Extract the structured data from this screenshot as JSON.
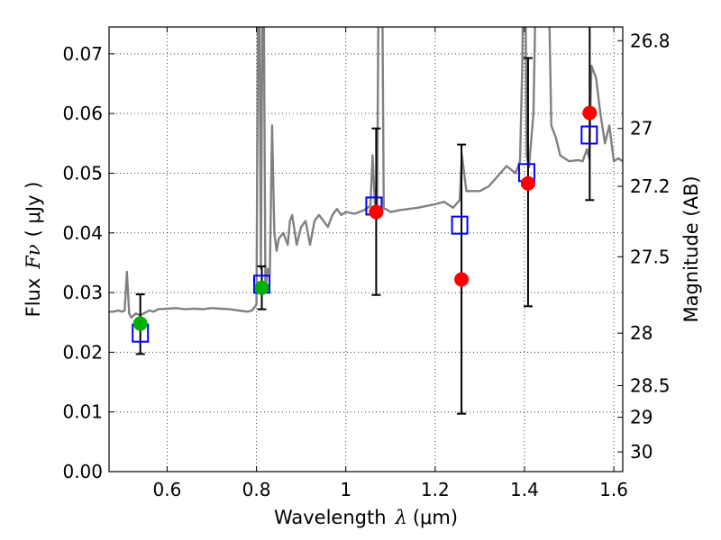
{
  "chart_data": {
    "type": "scatter",
    "xlabel_prefix": "Wavelength",
    "xlabel_symbol": "λ",
    "xlabel_unit": "(μm)",
    "ylabel_prefix": "Flux",
    "ylabel_symbol": "Fν",
    "ylabel_unit": "( μJy )",
    "y2label": "Magnitude (AB)",
    "xlim": [
      0.47,
      1.62
    ],
    "ylim": [
      0.0,
      0.0745
    ],
    "xticks": [
      {
        "value": 0.6,
        "label": "0.6"
      },
      {
        "value": 0.8,
        "label": "0.8"
      },
      {
        "value": 1.0,
        "label": "1"
      },
      {
        "value": 1.2,
        "label": "1.2"
      },
      {
        "value": 1.4,
        "label": "1.4"
      },
      {
        "value": 1.6,
        "label": "1.6"
      }
    ],
    "yticks": [
      {
        "value": 0.0,
        "label": "0.00"
      },
      {
        "value": 0.01,
        "label": "0.01"
      },
      {
        "value": 0.02,
        "label": "0.02"
      },
      {
        "value": 0.03,
        "label": "0.03"
      },
      {
        "value": 0.04,
        "label": "0.04"
      },
      {
        "value": 0.05,
        "label": "0.05"
      },
      {
        "value": 0.06,
        "label": "0.06"
      },
      {
        "value": 0.07,
        "label": "0.07"
      }
    ],
    "y2ticks": [
      {
        "flux": 0.0722,
        "label": "26.8"
      },
      {
        "flux": 0.0575,
        "label": "27"
      },
      {
        "flux": 0.0478,
        "label": "27.2"
      },
      {
        "flux": 0.036,
        "label": "27.5"
      },
      {
        "flux": 0.0232,
        "label": "28"
      },
      {
        "flux": 0.0144,
        "label": "28.5"
      },
      {
        "flux": 0.0091,
        "label": "29"
      },
      {
        "flux": 0.0033,
        "label": "30"
      }
    ],
    "grid": true,
    "series": [
      {
        "name": "model spectrum",
        "kind": "line",
        "color": "#808080",
        "x": [
          0.47,
          0.48,
          0.49,
          0.5,
          0.505,
          0.51,
          0.515,
          0.52,
          0.53,
          0.54,
          0.55,
          0.56,
          0.57,
          0.58,
          0.6,
          0.62,
          0.64,
          0.66,
          0.68,
          0.7,
          0.72,
          0.74,
          0.76,
          0.78,
          0.79,
          0.8,
          0.805,
          0.81,
          0.815,
          0.82,
          0.825,
          0.83,
          0.835,
          0.84,
          0.845,
          0.85,
          0.86,
          0.87,
          0.875,
          0.88,
          0.89,
          0.9,
          0.91,
          0.92,
          0.93,
          0.94,
          0.95,
          0.96,
          0.97,
          0.98,
          0.99,
          1.0,
          1.02,
          1.04,
          1.055,
          1.06,
          1.065,
          1.07,
          1.075,
          1.08,
          1.085,
          1.09,
          1.1,
          1.12,
          1.14,
          1.16,
          1.18,
          1.2,
          1.22,
          1.24,
          1.255,
          1.26,
          1.27,
          1.28,
          1.3,
          1.32,
          1.34,
          1.36,
          1.38,
          1.39,
          1.395,
          1.4,
          1.405,
          1.41,
          1.42,
          1.43,
          1.44,
          1.45,
          1.46,
          1.47,
          1.48,
          1.5,
          1.52,
          1.53,
          1.54,
          1.545,
          1.55,
          1.56,
          1.57,
          1.58,
          1.59,
          1.6,
          1.61,
          1.62
        ],
        "y": [
          0.0268,
          0.0268,
          0.027,
          0.0268,
          0.027,
          0.0335,
          0.0265,
          0.0258,
          0.0265,
          0.0262,
          0.0266,
          0.027,
          0.0268,
          0.0272,
          0.0273,
          0.0274,
          0.0272,
          0.0273,
          0.0272,
          0.0274,
          0.0273,
          0.0272,
          0.027,
          0.0268,
          0.027,
          0.028,
          0.1,
          0.034,
          0.1,
          0.03,
          0.034,
          0.033,
          0.058,
          0.04,
          0.037,
          0.039,
          0.04,
          0.038,
          0.042,
          0.043,
          0.038,
          0.041,
          0.042,
          0.038,
          0.042,
          0.043,
          0.042,
          0.041,
          0.043,
          0.044,
          0.043,
          0.0435,
          0.0432,
          0.0438,
          0.0445,
          0.053,
          0.045,
          0.044,
          0.1,
          0.1,
          0.044,
          0.044,
          0.0435,
          0.0438,
          0.044,
          0.0442,
          0.0445,
          0.0448,
          0.0452,
          0.0442,
          0.0455,
          0.053,
          0.047,
          0.047,
          0.047,
          0.0478,
          0.0495,
          0.0512,
          0.05,
          0.052,
          0.068,
          0.1,
          0.053,
          0.051,
          0.06,
          0.1,
          0.1,
          0.1,
          0.058,
          0.056,
          0.053,
          0.052,
          0.0522,
          0.052,
          0.054,
          0.0525,
          0.068,
          0.066,
          0.06,
          0.055,
          0.058,
          0.052,
          0.0525,
          0.052
        ]
      },
      {
        "name": "model band fluxes",
        "kind": "squares",
        "color": "#0000ff",
        "x": [
          0.54,
          0.812,
          1.063,
          1.255,
          1.405,
          1.545
        ],
        "y": [
          0.0232,
          0.0314,
          0.0445,
          0.0413,
          0.0501,
          0.0564
        ]
      },
      {
        "name": "observed detections",
        "kind": "circles",
        "color": "#00b000",
        "x": [
          0.54,
          0.812
        ],
        "y": [
          0.0248,
          0.0308
        ],
        "yerr_low": [
          0.0197,
          0.0272
        ],
        "yerr_high": [
          0.0297,
          0.0344
        ]
      },
      {
        "name": "observed upper limits",
        "kind": "circles",
        "color": "#ff0000",
        "x": [
          1.068,
          1.259,
          1.408,
          1.546
        ],
        "y": [
          0.0435,
          0.0322,
          0.0483,
          0.0601
        ],
        "yerr_low": [
          0.0296,
          0.0097,
          0.0277,
          0.0455
        ],
        "yerr_high": [
          0.0575,
          0.0548,
          0.0693,
          0.0745
        ]
      }
    ]
  }
}
